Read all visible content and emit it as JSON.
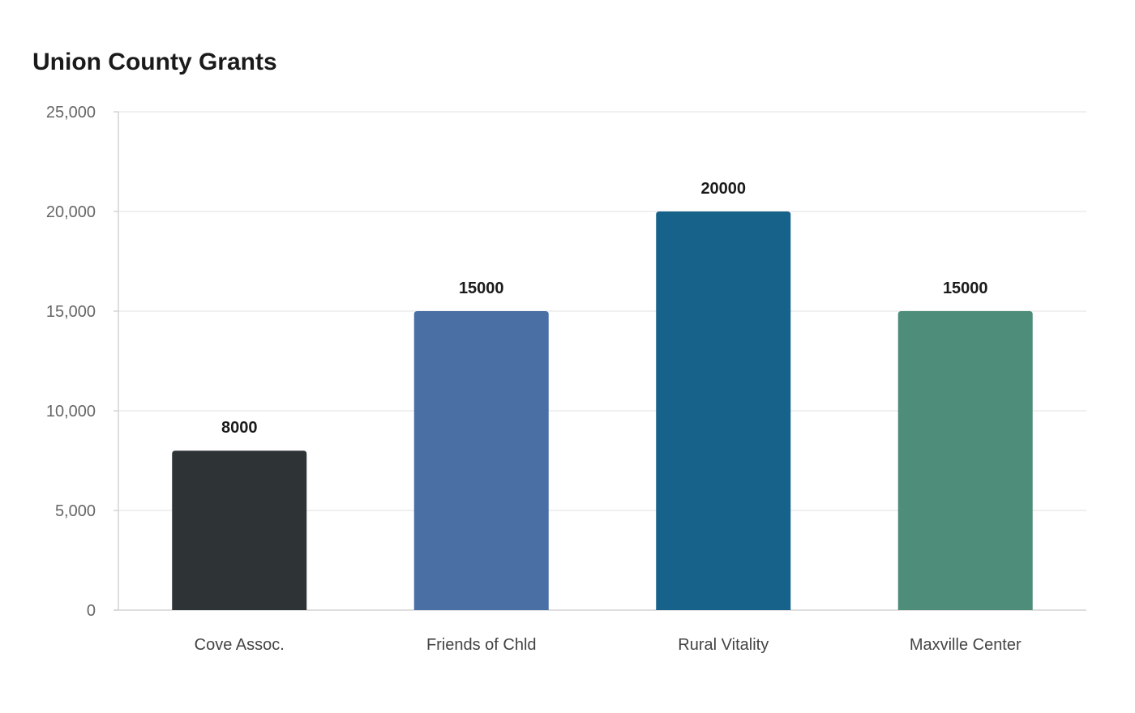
{
  "chart_data": {
    "type": "bar",
    "title": "Union County Grants",
    "categories": [
      "Cove Assoc.",
      "Friends of Chld",
      "Rural Vitality",
      "Maxville Center"
    ],
    "values": [
      8000,
      15000,
      20000,
      15000
    ],
    "data_labels": [
      "8000",
      "15000",
      "20000",
      "15000"
    ],
    "colors": [
      "#2e3436",
      "#4a6fa5",
      "#17628a",
      "#4e8d7a"
    ],
    "ylim": [
      0,
      25000
    ],
    "yticks": [
      0,
      5000,
      10000,
      15000,
      20000,
      25000
    ],
    "ytick_labels": [
      "0",
      "5,000",
      "10,000",
      "15,000",
      "20,000",
      "25,000"
    ],
    "xlabel": "",
    "ylabel": "",
    "grid": true,
    "legend": "none",
    "grid_color": "#ebebeb",
    "axis_color": "#d4d4d4"
  }
}
